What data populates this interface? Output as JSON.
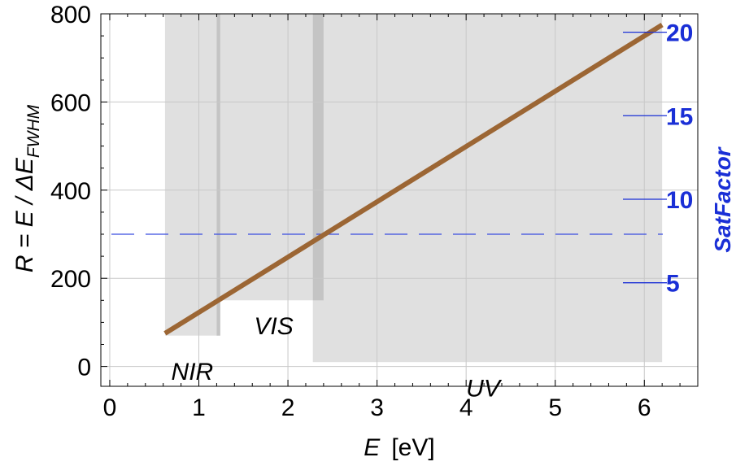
{
  "chart_data": {
    "type": "line",
    "xlabel_symbol": "E",
    "xlabel_unit": "[eV]",
    "ylabel_main": "R = E / ΔE",
    "ylabel_subscript": "FWHM",
    "y2label": "SatFactor",
    "xlim": [
      -0.1,
      6.6
    ],
    "ylim": [
      -45,
      800
    ],
    "y2lim": [
      -1.2,
      21.1
    ],
    "x_ticks": [
      0,
      1,
      2,
      3,
      4,
      5,
      6
    ],
    "x_tick_labels": [
      "0",
      "1",
      "2",
      "3",
      "4",
      "5",
      "6"
    ],
    "y_ticks": [
      0,
      200,
      400,
      600,
      800
    ],
    "y_tick_labels": [
      "0",
      "200",
      "400",
      "600",
      "800"
    ],
    "y2_ticks": [
      5,
      10,
      15,
      20
    ],
    "y2_tick_labels": [
      "5",
      "10",
      "15",
      "20"
    ],
    "grid": true,
    "series": [
      {
        "x": [
          0.62,
          6.2
        ],
        "y": [
          75,
          775
        ],
        "color": "#9c6634"
      }
    ],
    "reference_line": {
      "y": 300,
      "style": "dashed",
      "color": "#3a4ee0"
    },
    "bands": [
      {
        "label": "NIR",
        "x": [
          0.62,
          1.24
        ],
        "y": [
          70,
          800
        ]
      },
      {
        "label": "VIS",
        "x": [
          1.2,
          2.4
        ],
        "y": [
          150,
          800
        ]
      },
      {
        "label": "UV",
        "x": [
          2.28,
          6.2
        ],
        "y": [
          10,
          800
        ]
      }
    ],
    "band_overlaps": [
      {
        "x": [
          1.2,
          1.24
        ]
      },
      {
        "x": [
          2.28,
          2.4
        ]
      }
    ],
    "colors": {
      "band": "#e0e0e0",
      "overlap": "#c4c4c4",
      "right_axis": "#1a2fd6"
    }
  }
}
